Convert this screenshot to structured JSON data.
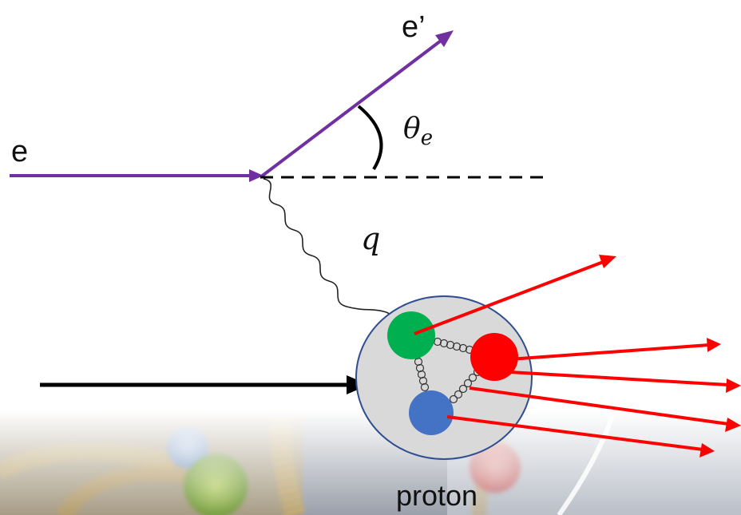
{
  "labels": {
    "incoming_electron": "e",
    "scattered_electron": "e’",
    "scattering_angle_symbol": "θ",
    "scattering_angle_subscript": "e",
    "virtual_photon": "q",
    "target": "proton"
  },
  "colors": {
    "electron_line": "#7030a0",
    "beam_arrow": "#000000",
    "outgoing_jets": "#ff0000",
    "proton_fill": "#d9d9d9",
    "proton_outline": "#2f4f8f",
    "quark_green": "#00b050",
    "quark_red": "#ff0000",
    "quark_blue": "#4472c4",
    "gluon_spring": "#333333"
  },
  "background_icons": [
    "blurred-gluon-spring-icon",
    "blurred-quark-sphere-icon"
  ]
}
